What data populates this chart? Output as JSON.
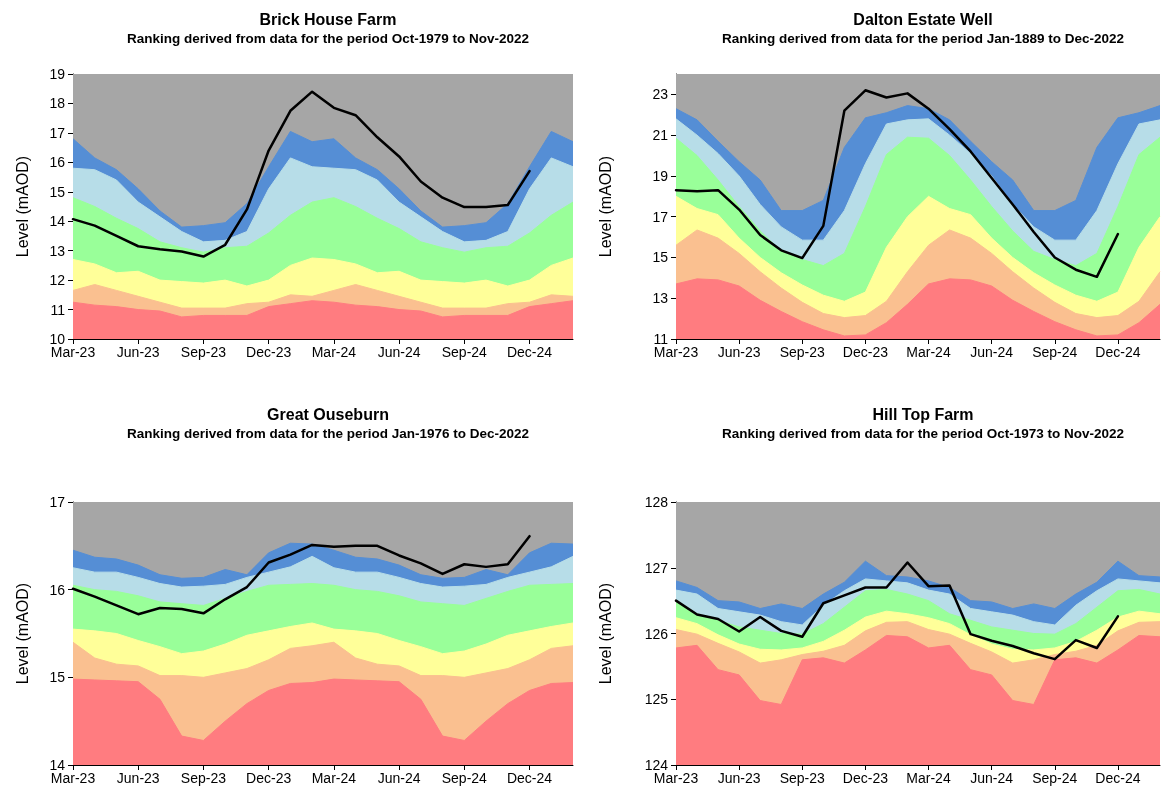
{
  "chart_data": [
    {
      "type": "area",
      "title": "Brick House Farm",
      "subtitle": "Ranking derived from data for the period Oct-1979 to Nov-2022",
      "ylabel": "Level (mAOD)",
      "categories": [
        "Mar-23",
        null,
        null,
        "Jun-23",
        null,
        null,
        "Sep-23",
        null,
        null,
        "Dec-23",
        null,
        null,
        "Mar-24",
        null,
        null,
        "Jun-24",
        null,
        null,
        "Sep-24",
        null,
        null,
        "Dec-24",
        null,
        null
      ],
      "ylim": [
        10,
        19
      ],
      "yticks": [
        10,
        11,
        12,
        13,
        14,
        15,
        16,
        17,
        18,
        19
      ],
      "grid": false,
      "marker": "none",
      "line_style": "solid",
      "bands": [
        {
          "axis": "y",
          "from": 10,
          "to": 19,
          "color": "#a6a6a6"
        }
      ],
      "series": [
        {
          "color": "#558ed5",
          "values": [
            16.8,
            16.15,
            15.75,
            15.1,
            14.35,
            13.8,
            13.85,
            13.95,
            14.6,
            15.85,
            17.05,
            16.7,
            16.8,
            16.15,
            15.75,
            15.1,
            14.35,
            13.8,
            13.85,
            13.95,
            14.6,
            15.85,
            17.05,
            16.7
          ]
        },
        {
          "color": "#b7dde8",
          "values": [
            15.8,
            15.75,
            15.4,
            14.65,
            14.15,
            13.65,
            13.3,
            13.35,
            13.65,
            15.1,
            16.15,
            15.85,
            15.8,
            15.75,
            15.4,
            14.65,
            14.15,
            13.65,
            13.3,
            13.35,
            13.65,
            15.1,
            16.15,
            15.85
          ]
        },
        {
          "color": "#99ff99",
          "values": [
            14.8,
            14.5,
            14.1,
            13.75,
            13.3,
            13.1,
            12.95,
            13.1,
            13.15,
            13.6,
            14.2,
            14.65,
            14.8,
            14.5,
            14.1,
            13.75,
            13.3,
            13.1,
            12.95,
            13.1,
            13.15,
            13.6,
            14.2,
            14.65
          ]
        },
        {
          "color": "#ffff99",
          "values": [
            12.7,
            12.55,
            12.25,
            12.3,
            12.0,
            11.95,
            11.9,
            12.0,
            11.8,
            12.0,
            12.5,
            12.75,
            12.7,
            12.55,
            12.25,
            12.3,
            12.0,
            11.95,
            11.9,
            12.0,
            11.8,
            12.0,
            12.5,
            12.75
          ]
        },
        {
          "color": "#fac090",
          "values": [
            11.65,
            11.85,
            11.65,
            11.45,
            11.25,
            11.05,
            11.05,
            11.05,
            11.2,
            11.25,
            11.5,
            11.45,
            11.65,
            11.85,
            11.65,
            11.45,
            11.25,
            11.05,
            11.05,
            11.05,
            11.2,
            11.25,
            11.5,
            11.45
          ]
        },
        {
          "color": "#ff7c80",
          "values": [
            11.25,
            11.15,
            11.1,
            11.0,
            10.95,
            10.75,
            10.8,
            10.8,
            10.8,
            11.1,
            11.2,
            11.3,
            11.25,
            11.15,
            11.1,
            11.0,
            10.95,
            10.75,
            10.8,
            10.8,
            10.8,
            11.1,
            11.2,
            11.3
          ]
        },
        {
          "type": "line",
          "color": "#000000",
          "values": [
            14.07,
            13.85,
            13.5,
            13.15,
            13.05,
            12.97,
            12.8,
            13.2,
            14.4,
            16.4,
            17.75,
            18.4,
            17.85,
            17.6,
            16.85,
            16.2,
            15.35,
            14.8,
            14.48,
            14.48,
            14.55,
            15.7,
            null,
            null
          ]
        }
      ]
    },
    {
      "type": "area",
      "title": "Dalton Estate Well",
      "subtitle": "Ranking derived from data for the period Jan-1889 to Dec-2022",
      "ylabel": "Level (mAOD)",
      "categories": [
        "Mar-23",
        null,
        null,
        "Jun-23",
        null,
        null,
        "Sep-23",
        null,
        null,
        "Dec-23",
        null,
        null,
        "Mar-24",
        null,
        null,
        "Jun-24",
        null,
        null,
        "Sep-24",
        null,
        null,
        "Dec-24",
        null,
        null
      ],
      "ylim": [
        11,
        24
      ],
      "yticks": [
        11,
        13,
        15,
        17,
        19,
        21,
        23
      ],
      "grid": false,
      "marker": "none",
      "line_style": "solid",
      "bands": [
        {
          "axis": "y",
          "from": 11,
          "to": 24,
          "color": "#a6a6a6"
        }
      ],
      "series": [
        {
          "color": "#558ed5",
          "values": [
            22.3,
            21.75,
            20.7,
            19.7,
            18.8,
            17.3,
            17.3,
            17.8,
            20.4,
            21.85,
            22.1,
            22.45,
            22.3,
            21.75,
            20.7,
            19.7,
            18.8,
            17.3,
            17.3,
            17.8,
            20.4,
            21.85,
            22.1,
            22.45
          ]
        },
        {
          "color": "#b7dde8",
          "values": [
            21.8,
            21.0,
            20.1,
            19.0,
            17.6,
            16.5,
            15.85,
            15.85,
            17.3,
            19.6,
            21.55,
            21.75,
            21.8,
            21.0,
            20.1,
            19.0,
            17.6,
            16.5,
            15.85,
            15.85,
            17.3,
            19.6,
            21.55,
            21.75
          ]
        },
        {
          "color": "#99ff99",
          "values": [
            20.85,
            20.0,
            18.8,
            17.5,
            16.3,
            15.3,
            14.9,
            14.6,
            15.2,
            17.5,
            20.05,
            20.9,
            20.85,
            20.0,
            18.8,
            17.5,
            16.3,
            15.3,
            14.9,
            14.6,
            15.2,
            17.5,
            20.05,
            20.9
          ]
        },
        {
          "color": "#ffff99",
          "values": [
            18.0,
            17.4,
            17.1,
            15.95,
            15.0,
            14.25,
            13.65,
            13.15,
            12.85,
            13.3,
            15.5,
            17.0,
            18.0,
            17.4,
            17.1,
            15.95,
            15.0,
            14.25,
            13.65,
            13.15,
            12.85,
            13.3,
            15.5,
            17.0
          ]
        },
        {
          "color": "#fac090",
          "values": [
            15.6,
            16.35,
            15.95,
            15.2,
            14.3,
            13.5,
            12.8,
            12.25,
            12.05,
            12.15,
            12.85,
            14.3,
            15.6,
            16.35,
            15.95,
            15.2,
            14.3,
            13.5,
            12.8,
            12.25,
            12.05,
            12.15,
            12.85,
            14.3
          ]
        },
        {
          "color": "#ff7c80",
          "values": [
            13.7,
            13.95,
            13.9,
            13.6,
            12.9,
            12.35,
            11.85,
            11.45,
            11.15,
            11.2,
            11.8,
            12.7,
            13.7,
            13.95,
            13.9,
            13.6,
            12.9,
            12.35,
            11.85,
            11.45,
            11.15,
            11.2,
            11.8,
            12.7
          ]
        },
        {
          "type": "line",
          "color": "#000000",
          "values": [
            18.3,
            18.25,
            18.3,
            17.35,
            16.1,
            15.35,
            14.97,
            16.55,
            22.2,
            23.2,
            22.85,
            23.05,
            22.3,
            21.3,
            20.2,
            18.9,
            17.6,
            16.25,
            15.0,
            14.4,
            14.05,
            16.15,
            null,
            null
          ]
        }
      ]
    },
    {
      "type": "area",
      "title": "Great Ouseburn",
      "subtitle": "Ranking derived from data for the period Jan-1976 to Dec-2022",
      "ylabel": "Level (mAOD)",
      "categories": [
        "Mar-23",
        null,
        null,
        "Jun-23",
        null,
        null,
        "Sep-23",
        null,
        null,
        "Dec-23",
        null,
        null,
        "Mar-24",
        null,
        null,
        "Jun-24",
        null,
        null,
        "Sep-24",
        null,
        null,
        "Dec-24",
        null,
        null
      ],
      "ylim": [
        14,
        17
      ],
      "yticks": [
        14,
        15,
        16,
        17
      ],
      "grid": false,
      "marker": "none",
      "line_style": "solid",
      "bands": [
        {
          "axis": "y",
          "from": 14,
          "to": 17,
          "color": "#a6a6a6"
        }
      ],
      "series": [
        {
          "color": "#558ed5",
          "values": [
            16.45,
            16.37,
            16.35,
            16.28,
            16.17,
            16.13,
            16.14,
            16.23,
            16.17,
            16.42,
            16.53,
            16.52,
            16.45,
            16.37,
            16.35,
            16.28,
            16.17,
            16.13,
            16.14,
            16.23,
            16.17,
            16.42,
            16.53,
            16.52
          ]
        },
        {
          "color": "#b7dde8",
          "values": [
            16.25,
            16.2,
            16.2,
            16.14,
            16.07,
            16.03,
            16.04,
            16.06,
            16.14,
            16.2,
            16.26,
            16.38,
            16.25,
            16.2,
            16.2,
            16.14,
            16.07,
            16.03,
            16.04,
            16.06,
            16.14,
            16.2,
            16.26,
            16.38
          ]
        },
        {
          "color": "#99ff99",
          "values": [
            16.05,
            16.0,
            15.98,
            15.93,
            15.86,
            15.84,
            15.82,
            15.9,
            15.98,
            16.05,
            16.06,
            16.07,
            16.05,
            16.0,
            15.98,
            15.93,
            15.86,
            15.84,
            15.82,
            15.9,
            15.98,
            16.05,
            16.06,
            16.07
          ]
        },
        {
          "color": "#ffff99",
          "values": [
            15.55,
            15.53,
            15.5,
            15.42,
            15.35,
            15.27,
            15.3,
            15.38,
            15.48,
            15.53,
            15.58,
            15.62,
            15.55,
            15.53,
            15.5,
            15.42,
            15.35,
            15.27,
            15.3,
            15.38,
            15.48,
            15.53,
            15.58,
            15.62
          ]
        },
        {
          "color": "#fac090",
          "values": [
            15.4,
            15.22,
            15.15,
            15.13,
            15.02,
            15.02,
            15.0,
            15.05,
            15.1,
            15.2,
            15.33,
            15.36,
            15.4,
            15.22,
            15.15,
            15.13,
            15.02,
            15.02,
            15.0,
            15.05,
            15.1,
            15.2,
            15.33,
            15.36
          ]
        },
        {
          "color": "#ff7c80",
          "values": [
            14.98,
            14.97,
            14.96,
            14.95,
            14.75,
            14.33,
            14.28,
            14.5,
            14.7,
            14.85,
            14.93,
            14.94,
            14.98,
            14.97,
            14.96,
            14.95,
            14.75,
            14.33,
            14.28,
            14.5,
            14.7,
            14.85,
            14.93,
            14.94
          ]
        },
        {
          "type": "line",
          "color": "#000000",
          "values": [
            16.01,
            15.92,
            15.82,
            15.72,
            15.79,
            15.78,
            15.73,
            15.89,
            16.03,
            16.31,
            16.4,
            16.51,
            16.49,
            16.5,
            16.5,
            16.39,
            16.3,
            16.18,
            16.29,
            16.26,
            16.29,
            16.61,
            null,
            null
          ]
        }
      ]
    },
    {
      "type": "area",
      "title": "Hill Top Farm",
      "subtitle": "Ranking derived from data for the period Oct-1973 to Nov-2022",
      "ylabel": "Level (mAOD)",
      "categories": [
        "Mar-23",
        null,
        null,
        "Jun-23",
        null,
        null,
        "Sep-23",
        null,
        null,
        "Dec-23",
        null,
        null,
        "Mar-24",
        null,
        null,
        "Jun-24",
        null,
        null,
        "Sep-24",
        null,
        null,
        "Dec-24",
        null,
        null
      ],
      "ylim": [
        124,
        128
      ],
      "yticks": [
        124,
        125,
        126,
        127,
        128
      ],
      "grid": false,
      "marker": "none",
      "line_style": "solid",
      "bands": [
        {
          "axis": "y",
          "from": 124,
          "to": 128,
          "color": "#a6a6a6"
        }
      ],
      "series": [
        {
          "color": "#558ed5",
          "values": [
            126.8,
            126.7,
            126.5,
            126.48,
            126.38,
            126.45,
            126.38,
            126.6,
            126.78,
            127.1,
            126.88,
            126.86,
            126.8,
            126.7,
            126.5,
            126.48,
            126.38,
            126.45,
            126.38,
            126.6,
            126.78,
            127.1,
            126.88,
            126.86
          ]
        },
        {
          "color": "#b7dde8",
          "values": [
            126.66,
            126.6,
            126.38,
            126.33,
            126.28,
            126.18,
            126.13,
            126.43,
            126.65,
            126.83,
            126.8,
            126.77,
            126.66,
            126.6,
            126.38,
            126.33,
            126.28,
            126.18,
            126.13,
            126.43,
            126.65,
            126.83,
            126.8,
            126.77
          ]
        },
        {
          "color": "#99ff99",
          "values": [
            126.5,
            126.3,
            126.2,
            126.1,
            126.05,
            126.0,
            125.99,
            126.15,
            126.4,
            126.65,
            126.67,
            126.6,
            126.5,
            126.3,
            126.2,
            126.1,
            126.05,
            126.0,
            125.99,
            126.15,
            126.4,
            126.65,
            126.67,
            126.6
          ]
        },
        {
          "color": "#ffff99",
          "values": [
            126.24,
            126.15,
            125.98,
            125.84,
            125.76,
            125.75,
            125.78,
            125.88,
            126.05,
            126.25,
            126.34,
            126.3,
            126.24,
            126.15,
            125.98,
            125.84,
            125.76,
            125.75,
            125.78,
            125.88,
            126.05,
            126.25,
            126.34,
            126.3
          ]
        },
        {
          "color": "#fac090",
          "values": [
            126.06,
            125.99,
            125.85,
            125.72,
            125.55,
            125.6,
            125.68,
            125.73,
            125.82,
            126.04,
            126.17,
            126.18,
            126.06,
            125.99,
            125.85,
            125.72,
            125.55,
            125.6,
            125.68,
            125.73,
            125.82,
            126.04,
            126.17,
            126.18
          ]
        },
        {
          "color": "#ff7c80",
          "values": [
            125.78,
            125.82,
            125.45,
            125.37,
            124.98,
            124.92,
            125.6,
            125.63,
            125.55,
            125.75,
            125.97,
            125.95,
            125.78,
            125.82,
            125.45,
            125.37,
            124.98,
            124.92,
            125.6,
            125.63,
            125.55,
            125.75,
            125.97,
            125.95
          ]
        },
        {
          "type": "line",
          "color": "#000000",
          "values": [
            126.5,
            126.29,
            126.22,
            126.03,
            126.25,
            126.04,
            125.95,
            126.46,
            126.58,
            126.7,
            126.7,
            127.08,
            126.72,
            126.73,
            125.99,
            125.89,
            125.81,
            125.7,
            125.61,
            125.9,
            125.78,
            126.26,
            null,
            null
          ]
        }
      ]
    }
  ]
}
